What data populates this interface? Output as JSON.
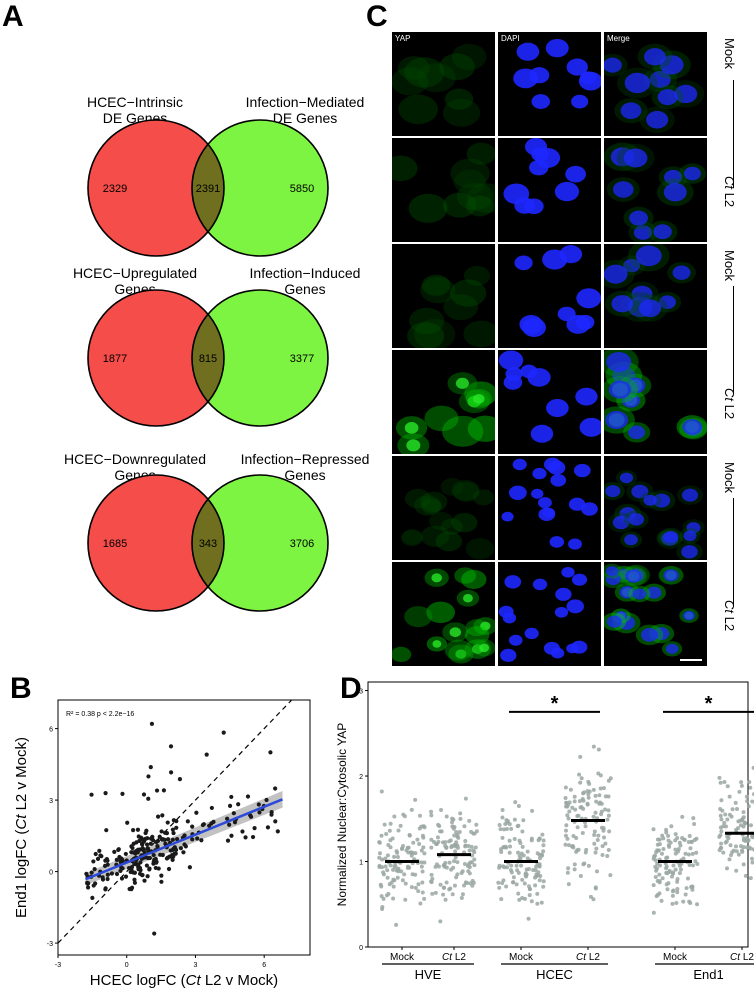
{
  "panels": {
    "a": "A",
    "b": "B",
    "c": "C",
    "d": "D"
  },
  "venn": [
    {
      "left_label": "HCEC−Intrinsic\nDE Genes",
      "right_label": "Infection−Mediated\nDE Genes",
      "left_only": "2329",
      "overlap": "2391",
      "right_only": "5850"
    },
    {
      "left_label": "HCEC−Upregulated\nGenes",
      "right_label": "Infection−Induced\nGenes",
      "left_only": "1877",
      "overlap": "815",
      "right_only": "3377"
    },
    {
      "left_label": "HCEC−Downregulated\nGenes",
      "right_label": "Infection−Repressed\nGenes",
      "left_only": "1685",
      "overlap": "343",
      "right_only": "3706"
    }
  ],
  "venn_colors": {
    "left": "#f44d4a",
    "right": "#7ef442",
    "overlap": "#6f6f1f"
  },
  "micrograph": {
    "columns": [
      "YAP",
      "DAPI",
      "Merge"
    ],
    "row_labels": [
      {
        "plain": "Mock"
      },
      {
        "italic": "Ct",
        "plain": " L2"
      },
      {
        "plain": "Mock"
      },
      {
        "italic": "Ct",
        "plain": " L2"
      },
      {
        "plain": "Mock"
      },
      {
        "italic": "Ct",
        "plain": " L2"
      }
    ],
    "groups": [
      "HVE",
      "HCEC",
      "End1"
    ]
  },
  "chart_data": [
    {
      "type": "scatter",
      "annotation": "R² = 0.38   p < 2.2e−16",
      "xlabel_pre": "HCEC logFC (",
      "xlabel_italic": "Ct",
      "xlabel_post": " L2 v Mock)",
      "ylabel_pre": "End1 logFC (",
      "ylabel_italic": "Ct",
      "ylabel_post": " L2 v Mock)",
      "xlim": [
        -3,
        8
      ],
      "ylim": [
        -3.5,
        7.2
      ],
      "xticks": [
        -3,
        0,
        3,
        6
      ],
      "yticks": [
        -3,
        0,
        3,
        6
      ],
      "fit": {
        "slope": 0.39,
        "intercept": 0.38,
        "x_range": [
          -1.8,
          6.8
        ]
      },
      "identity_line": true
    },
    {
      "type": "scatter",
      "ylabel": "Normalized Nuclear:Cytosolic YAP",
      "ylim": [
        0,
        3.1
      ],
      "yticks": [
        0,
        1,
        2,
        3
      ],
      "categories": [
        "Mock",
        "Ct L2",
        "Mock",
        "Ct L2",
        "Mock",
        "Ct L2"
      ],
      "category_labels": [
        {
          "plain": "Mock"
        },
        {
          "italic": "Ct",
          "plain": " L2"
        },
        {
          "plain": "Mock"
        },
        {
          "italic": "Ct",
          "plain": " L2"
        },
        {
          "plain": "Mock"
        },
        {
          "italic": "Ct",
          "plain": " L2"
        }
      ],
      "groups": [
        "HVE",
        "HCEC",
        "End1"
      ],
      "medians": [
        1.0,
        1.08,
        1.0,
        1.48,
        1.0,
        1.33
      ],
      "significance": [
        {
          "pair": [
            2,
            3
          ],
          "label": "*",
          "y": 2.75
        },
        {
          "pair": [
            4,
            5
          ],
          "label": "*",
          "y": 2.75
        }
      ]
    }
  ]
}
